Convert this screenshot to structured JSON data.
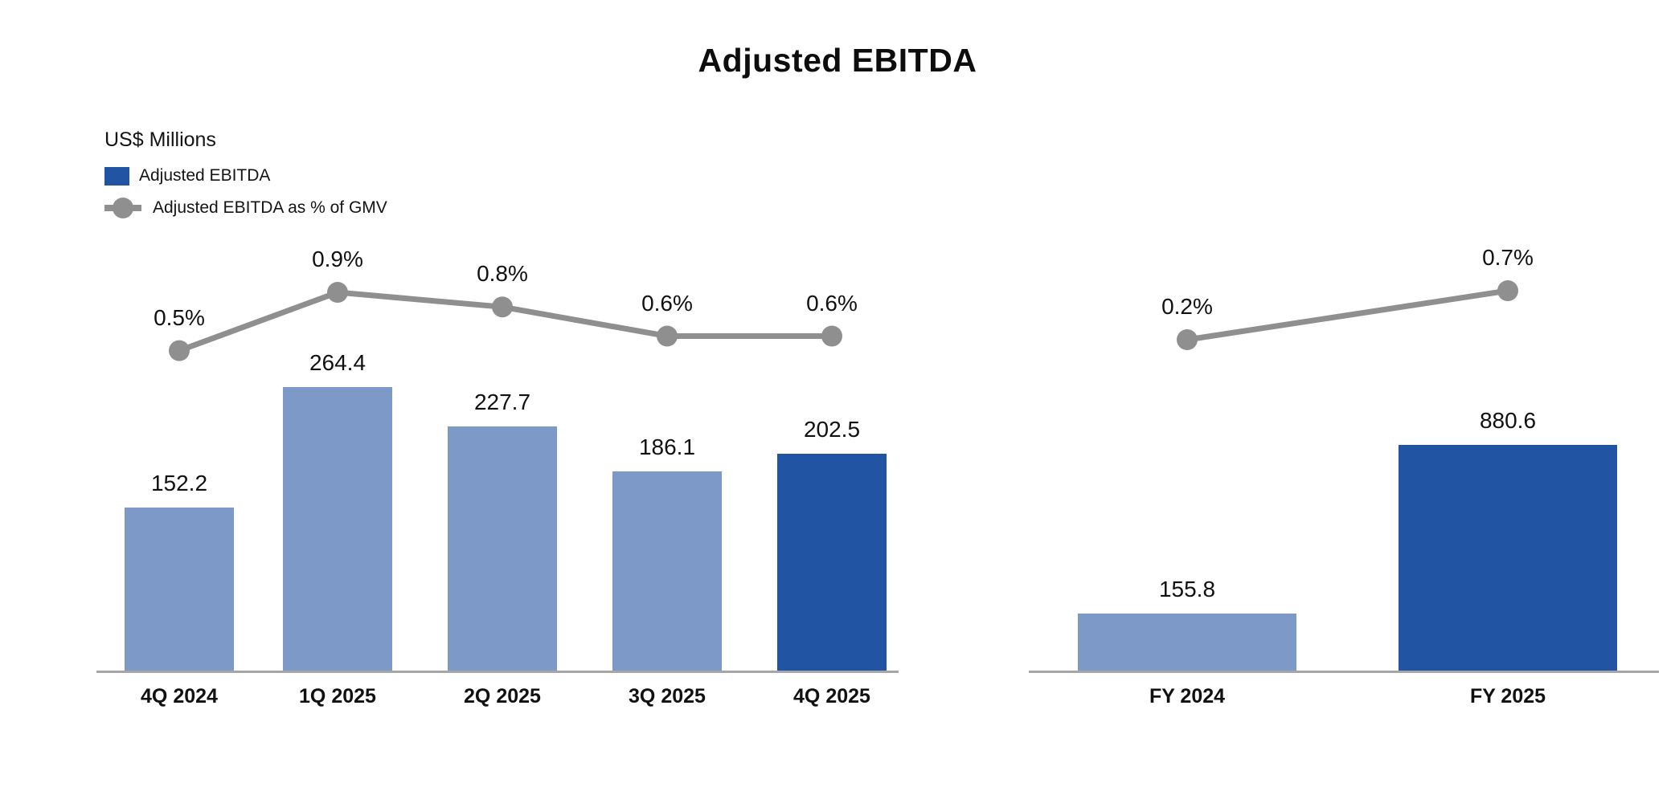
{
  "title": "Adjusted EBITDA",
  "legend": {
    "units_label": "US$ Millions",
    "items": [
      {
        "label": "Adjusted EBITDA",
        "marker": "square"
      },
      {
        "label": "Adjusted EBITDA as % of GMV",
        "marker": "line-dot"
      }
    ]
  },
  "colors": {
    "bar_default": "#7D99C7",
    "bar_highlight": "#2155A3",
    "line": "#8F8F8F",
    "axis": "#A6A6A6",
    "text": "#111111"
  },
  "chart_data": [
    {
      "type": "bar",
      "name": "quarterly-adjusted-ebitda",
      "title": "Adjusted EBITDA",
      "categories": [
        "4Q 2024",
        "1Q 2025",
        "2Q 2025",
        "3Q 2025",
        "4Q 2025"
      ],
      "series": [
        {
          "name": "Adjusted EBITDA",
          "type": "bar",
          "unit": "US$ Millions",
          "values": [
            152.2,
            264.4,
            227.7,
            186.1,
            202.5
          ],
          "labels": [
            "152.2",
            "264.4",
            "227.7",
            "186.1",
            "202.5"
          ],
          "highlight_index": 4
        },
        {
          "name": "Adjusted EBITDA as % of GMV",
          "type": "line",
          "unit": "%",
          "values": [
            0.5,
            0.9,
            0.8,
            0.6,
            0.6
          ],
          "labels": [
            "0.5%",
            "0.9%",
            "0.8%",
            "0.6%",
            "0.6%"
          ]
        }
      ],
      "ylim": [
        0,
        300
      ],
      "grid": false,
      "legend_position": "top-left"
    },
    {
      "type": "bar",
      "name": "full-year-adjusted-ebitda",
      "title": "Adjusted EBITDA",
      "categories": [
        "FY 2024",
        "FY 2025"
      ],
      "series": [
        {
          "name": "Adjusted EBITDA",
          "type": "bar",
          "unit": "US$ Millions",
          "values": [
            155.8,
            880.6
          ],
          "labels": [
            "155.8",
            "880.6"
          ],
          "highlight_index": 1
        },
        {
          "name": "Adjusted EBITDA as % of GMV",
          "type": "line",
          "unit": "%",
          "values": [
            0.2,
            0.7
          ],
          "labels": [
            "0.2%",
            "0.7%"
          ]
        }
      ],
      "ylim": [
        0,
        1000
      ],
      "grid": false
    }
  ]
}
